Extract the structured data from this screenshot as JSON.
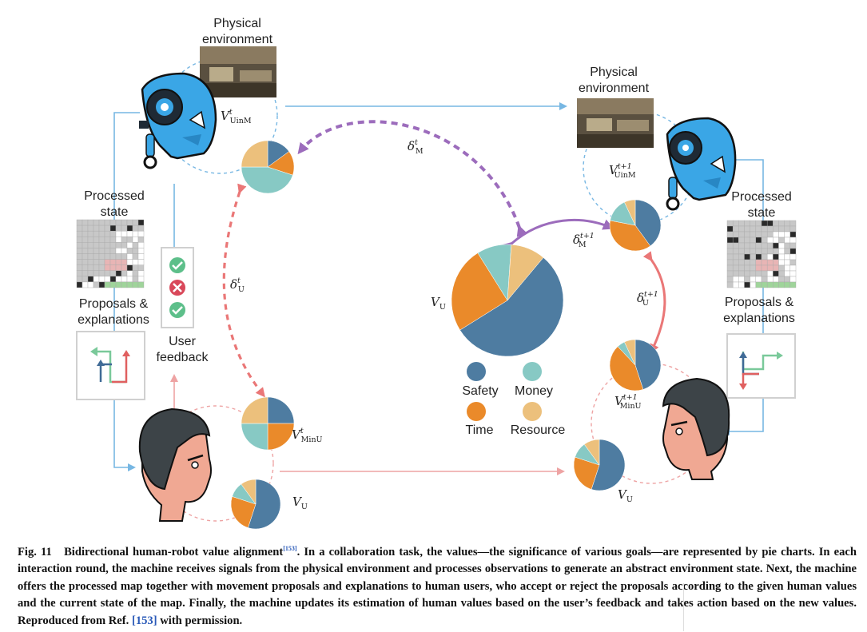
{
  "labels": {
    "phys_env_left_1": "Physical",
    "phys_env_left_2": "environment",
    "phys_env_right_1": "Physical",
    "phys_env_right_2": "environment",
    "proc_state_left_1": "Processed",
    "proc_state_left_2": "state",
    "proc_state_right_1": "Processed",
    "proc_state_right_2": "state",
    "proposals_left_1": "Proposals &",
    "proposals_left_2": "explanations",
    "proposals_right_1": "Proposals &",
    "proposals_right_2": "explanations",
    "user_feedback_1": "User",
    "user_feedback_2": "feedback"
  },
  "symbols": {
    "V": "V",
    "delta": "δ",
    "t": "t",
    "t1": "t+1",
    "UinM": "UinM",
    "MinU": "MinU",
    "M": "M",
    "U": "U"
  },
  "legend": {
    "safety": "Safety",
    "money": "Money",
    "time": "Time",
    "resource": "Resource"
  },
  "colors": {
    "safety": "#4e7ca1",
    "money": "#87c9c4",
    "time": "#ea8a2a",
    "resource": "#ecc07c",
    "purple_arrow": "#9c6cbc",
    "pink_arrow": "#ea7777",
    "blue_arrow": "#77b7e3",
    "robot_blue": "#3aa6e6"
  },
  "pies": {
    "center_VU": [
      0.55,
      0.1,
      0.25,
      0.1
    ],
    "left_VUinM": [
      0.15,
      0.45,
      0.15,
      0.25
    ],
    "left_VMinU": [
      0.25,
      0.25,
      0.25,
      0.25
    ],
    "left_VU": [
      0.55,
      0.1,
      0.25,
      0.1
    ],
    "right_VUinM": [
      0.4,
      0.15,
      0.38,
      0.07
    ],
    "right_VMinU": [
      0.45,
      0.05,
      0.43,
      0.07
    ],
    "right_VU": [
      0.55,
      0.1,
      0.25,
      0.1
    ]
  },
  "feedback_icons": [
    "check-icon",
    "cross-icon",
    "check-icon"
  ],
  "caption": {
    "fig_label": "Fig. 11",
    "title": "Bidirectional human-robot value alignment",
    "ref1": "[153]",
    "body": ". In a collaboration task, the values—the significance of various goals—are represented by pie charts. In each interaction round, the machine receives signals from the physical environment and processes observations to generate an abstract environment state. Next, the machine offers the processed map together with movement proposals and explanations to human users, who accept or reject the proposals according to the given human values and the current state of the map. Finally, the machine updates its estimation of human values based on the user’s feedback and takes action based on the new values. Reproduced from Ref. ",
    "ref2": "[153]",
    "tail": " with permission."
  }
}
